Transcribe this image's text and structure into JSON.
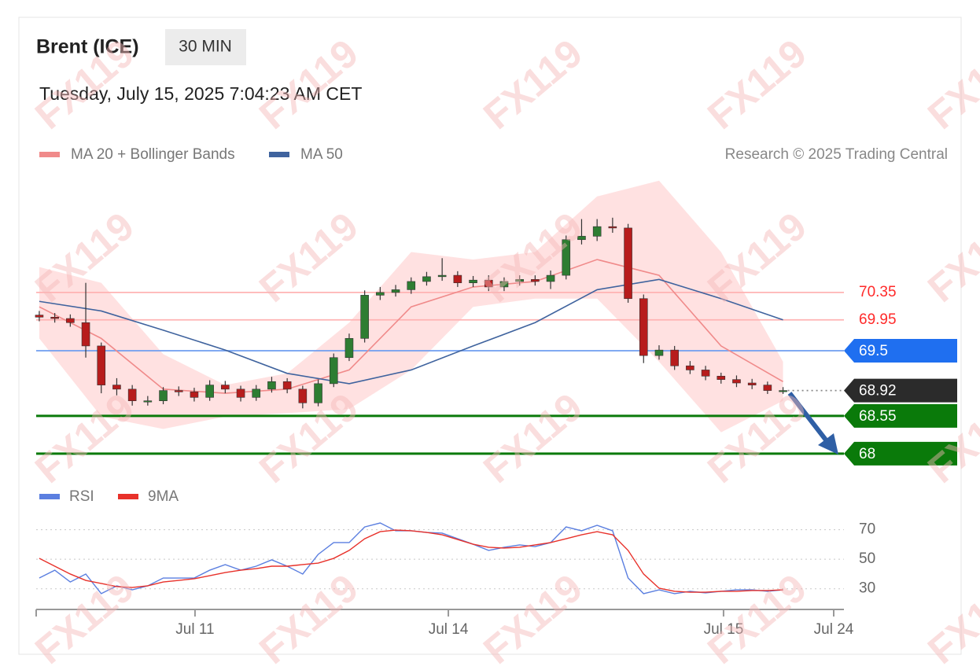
{
  "header": {
    "title": "Brent (ICE)",
    "interval": "30 MIN",
    "timestamp": "Tuesday, July 15, 2025 7:04:23 AM CET",
    "credit": "Research © 2025 Trading Central"
  },
  "watermark": "FX119",
  "chart_data": [
    {
      "type": "candlestick",
      "x": [
        0,
        1,
        2,
        3,
        4,
        5,
        6,
        7,
        8,
        9,
        10,
        11,
        12,
        13,
        14,
        15,
        16,
        17,
        18,
        19,
        20,
        21,
        22,
        23,
        24,
        25,
        26,
        27,
        28,
        29,
        30,
        31,
        32,
        33,
        34,
        35,
        36,
        37,
        38,
        39,
        40,
        41,
        42,
        43,
        44,
        45,
        46,
        47,
        48
      ],
      "open": [
        70.02,
        69.99,
        69.97,
        69.91,
        69.57,
        69.0,
        68.94,
        68.77,
        68.77,
        68.92,
        68.9,
        68.82,
        69.0,
        68.94,
        68.82,
        68.94,
        69.05,
        68.94,
        68.74,
        69.02,
        69.4,
        69.68,
        70.31,
        70.35,
        70.39,
        70.51,
        70.58,
        70.6,
        70.49,
        70.53,
        70.43,
        70.51,
        70.54,
        70.51,
        70.6,
        71.12,
        71.17,
        71.31,
        71.29,
        70.26,
        69.43,
        69.51,
        69.28,
        69.22,
        69.13,
        69.08,
        69.03,
        69.0,
        68.92
      ],
      "high": [
        70.08,
        70.05,
        70.03,
        70.49,
        69.62,
        69.1,
        69.0,
        68.84,
        68.97,
        68.98,
        68.96,
        69.07,
        69.06,
        68.99,
        69.0,
        69.12,
        69.1,
        68.99,
        69.08,
        69.46,
        69.75,
        70.38,
        70.43,
        70.46,
        70.57,
        70.65,
        70.85,
        70.66,
        70.59,
        70.6,
        70.57,
        70.6,
        70.6,
        70.67,
        71.18,
        71.42,
        71.42,
        71.44,
        71.35,
        70.32,
        69.58,
        69.57,
        69.35,
        69.28,
        69.18,
        69.14,
        69.09,
        69.05,
        68.97
      ],
      "low": [
        69.93,
        69.91,
        69.85,
        69.4,
        68.88,
        68.85,
        68.7,
        68.7,
        68.72,
        68.84,
        68.76,
        68.77,
        68.88,
        68.76,
        68.77,
        68.89,
        68.88,
        68.66,
        68.69,
        68.97,
        69.35,
        69.62,
        70.24,
        70.29,
        70.33,
        70.45,
        70.52,
        70.43,
        70.43,
        70.37,
        70.37,
        70.45,
        70.45,
        70.4,
        70.54,
        71.05,
        71.1,
        71.22,
        70.2,
        69.32,
        69.37,
        69.22,
        69.16,
        69.07,
        69.02,
        68.97,
        68.94,
        68.87,
        68.87
      ],
      "close": [
        69.99,
        69.97,
        69.91,
        69.57,
        69.0,
        68.94,
        68.77,
        68.77,
        68.92,
        68.9,
        68.82,
        69.0,
        68.94,
        68.82,
        68.94,
        69.05,
        68.94,
        68.74,
        69.02,
        69.4,
        69.68,
        70.31,
        70.35,
        70.39,
        70.51,
        70.58,
        70.6,
        70.49,
        70.53,
        70.43,
        70.51,
        70.54,
        70.51,
        70.6,
        71.12,
        71.17,
        71.31,
        71.29,
        70.26,
        69.43,
        69.51,
        69.28,
        69.22,
        69.13,
        69.08,
        69.03,
        69.0,
        68.92,
        68.92
      ],
      "up_color": "#2e7d32",
      "down_color": "#b71c1c",
      "overlays": [
        {
          "name": "MA 20 + Bollinger Bands",
          "color": "#f08a8a",
          "band_color": "#ffdcdc",
          "x": [
            0,
            4,
            8,
            12,
            16,
            20,
            24,
            28,
            32,
            36,
            40,
            44,
            48
          ],
          "values": [
            70.14,
            69.68,
            68.94,
            68.88,
            68.94,
            69.22,
            70.14,
            70.43,
            70.51,
            70.83,
            70.6,
            69.57,
            69.05
          ],
          "upper": [
            70.72,
            70.49,
            69.45,
            69.0,
            69.17,
            69.91,
            70.94,
            70.83,
            70.94,
            71.75,
            71.98,
            70.94,
            69.34
          ],
          "lower": [
            69.68,
            68.54,
            68.36,
            68.54,
            68.59,
            68.65,
            69.22,
            70.14,
            70.26,
            70.26,
            69.34,
            68.31,
            68.77
          ]
        },
        {
          "name": "MA 50",
          "color": "#3f639e",
          "x": [
            0,
            4,
            8,
            12,
            16,
            20,
            24,
            28,
            32,
            36,
            40,
            44,
            48
          ],
          "values": [
            70.22,
            70.08,
            69.8,
            69.51,
            69.17,
            69.02,
            69.22,
            69.57,
            69.91,
            70.39,
            70.54,
            70.26,
            69.95
          ]
        }
      ],
      "levels": [
        {
          "value": 70.35,
          "color": "#ff2a2a",
          "line_color": "#ffb3b3",
          "style": "label",
          "line": "solid"
        },
        {
          "value": 69.95,
          "color": "#ff2a2a",
          "line_color": "#ffb3b3",
          "style": "label",
          "line": "solid"
        },
        {
          "value": 69.5,
          "color": "#1f6ff0",
          "line_color": "#6f9ef0",
          "style": "tag",
          "line": "solid"
        },
        {
          "value": 68.92,
          "color": "#2b2b2b",
          "line_color": "#888888",
          "style": "tag",
          "line": "dotted"
        },
        {
          "value": 68.55,
          "color": "#0a7a0a",
          "line_color": "#0a7a0a",
          "style": "tag",
          "line": "solid"
        },
        {
          "value": 68.0,
          "color": "#0a7a0a",
          "line_color": "#0a7a0a",
          "style": "tag",
          "line": "solid"
        }
      ],
      "xlim": [
        -0.2,
        51.93
      ],
      "ylim": [
        67.7,
        72.0
      ]
    },
    {
      "type": "line",
      "x": [
        0,
        1,
        2,
        3,
        4,
        5,
        6,
        7,
        8,
        9,
        10,
        11,
        12,
        13,
        14,
        15,
        16,
        17,
        18,
        19,
        20,
        21,
        22,
        23,
        24,
        25,
        26,
        27,
        28,
        29,
        30,
        31,
        32,
        33,
        34,
        35,
        36,
        37,
        38,
        39,
        40,
        41,
        42,
        43,
        44,
        45,
        46,
        47,
        48
      ],
      "series": [
        {
          "name": "RSI",
          "color": "#5b7fe0",
          "values": [
            37.3,
            42.6,
            34.6,
            40.0,
            26.7,
            32.0,
            29.3,
            32.0,
            37.3,
            37.3,
            37.3,
            42.6,
            46.4,
            42.6,
            45.3,
            49.6,
            45.3,
            40.0,
            53.3,
            61.3,
            61.3,
            71.9,
            74.6,
            69.3,
            69.3,
            68.2,
            67.7,
            63.9,
            60.2,
            56.0,
            58.1,
            59.7,
            58.6,
            61.3,
            71.9,
            69.3,
            73.0,
            69.3,
            37.3,
            26.7,
            29.3,
            26.7,
            28.3,
            27.2,
            28.3,
            29.3,
            29.3,
            28.3,
            29.3
          ]
        },
        {
          "name": "9MA",
          "color": "#e8312a",
          "values": [
            50.6,
            45.3,
            40.0,
            35.7,
            33.6,
            31.5,
            30.9,
            32.0,
            34.6,
            35.7,
            36.8,
            38.9,
            41.0,
            42.6,
            43.7,
            45.3,
            45.3,
            46.4,
            47.4,
            50.6,
            56.0,
            63.9,
            68.7,
            69.8,
            69.3,
            68.2,
            66.6,
            63.4,
            60.2,
            58.1,
            57.6,
            58.1,
            59.7,
            61.3,
            63.9,
            66.6,
            68.7,
            66.6,
            56.0,
            40.0,
            30.4,
            28.3,
            27.7,
            27.7,
            28.3,
            28.3,
            28.8,
            28.8,
            29.3
          ]
        }
      ],
      "xlim": [
        -0.2,
        51.93
      ],
      "ylim": [
        16,
        81
      ],
      "yticks": [
        30,
        50,
        70
      ],
      "xticks": [
        {
          "value": 10.05,
          "label": "Jul 11"
        },
        {
          "value": 26.4,
          "label": "Jul 14"
        },
        {
          "value": 44.16,
          "label": "Jul 15"
        },
        {
          "value": 51.27,
          "label": "Jul 24"
        }
      ]
    }
  ]
}
